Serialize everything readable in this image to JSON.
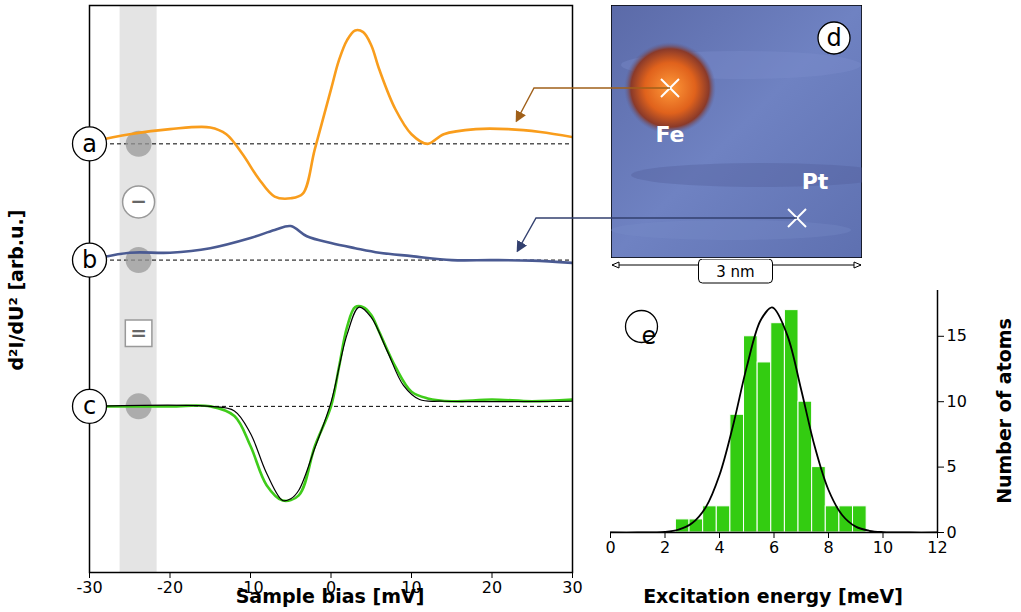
{
  "chart_data": [
    {
      "type": "line",
      "xlabel": "Sample bias [mV]",
      "ylabel": "d²I/dU² [arb.u.]",
      "xlim": [
        -30,
        30
      ],
      "xticks": [
        -30,
        -20,
        -10,
        0,
        10,
        20,
        30
      ],
      "ylim": [
        0,
        10
      ],
      "tick_labels": "x",
      "shaded_range": [
        -26.2,
        -21.6
      ],
      "marker_x": -23.9,
      "operators": [
        "−",
        "="
      ],
      "series": [
        {
          "name": "a",
          "color": "#f99d1c",
          "baseline": 7.56,
          "x": [
            -30,
            -25,
            -20,
            -15,
            -13,
            -11,
            -9,
            -7,
            -5,
            -3.5,
            -2,
            0,
            1,
            2,
            3,
            4,
            5,
            6,
            8,
            10,
            12,
            14,
            18,
            22,
            26,
            30
          ],
          "values": [
            7.59,
            7.73,
            7.82,
            7.85,
            7.73,
            7.38,
            6.95,
            6.63,
            6.6,
            6.68,
            7.47,
            8.52,
            9.04,
            9.39,
            9.56,
            9.53,
            9.3,
            8.87,
            8.17,
            7.73,
            7.56,
            7.73,
            7.82,
            7.82,
            7.77,
            7.68
          ]
        },
        {
          "name": "b",
          "color": "#4a5a92",
          "baseline": 5.51,
          "x": [
            -30,
            -25,
            -20,
            -15,
            -10,
            -7,
            -5,
            -3,
            0,
            3,
            6,
            10,
            15,
            20,
            25,
            30
          ],
          "values": [
            5.51,
            5.64,
            5.64,
            5.72,
            5.9,
            6.04,
            6.11,
            5.93,
            5.81,
            5.72,
            5.64,
            5.58,
            5.51,
            5.51,
            5.5,
            5.46
          ]
        },
        {
          "name": "c",
          "color": "#3fcc1a",
          "baseline": 2.93,
          "x": [
            -30,
            -20,
            -15,
            -12,
            -10,
            -8,
            -6,
            -4,
            -2,
            0,
            1,
            2,
            3,
            4,
            5,
            6,
            8,
            10,
            12,
            15,
            20,
            25,
            30
          ],
          "values": [
            2.93,
            2.93,
            2.93,
            2.76,
            2.23,
            1.54,
            1.27,
            1.36,
            2.23,
            2.93,
            3.63,
            4.33,
            4.68,
            4.68,
            4.54,
            4.24,
            3.63,
            3.19,
            3.07,
            3.02,
            3.05,
            3.02,
            3.05
          ]
        },
        {
          "color": "#000000",
          "x": [
            -30,
            -15,
            -12,
            -10,
            -8,
            -6,
            -5,
            -4,
            -2,
            0,
            2,
            3.5,
            5,
            7,
            9,
            11,
            14,
            30
          ],
          "values": [
            2.93,
            2.93,
            2.85,
            2.45,
            1.75,
            1.27,
            1.3,
            1.45,
            2.2,
            3.0,
            4.2,
            4.68,
            4.5,
            3.9,
            3.3,
            3.05,
            3.02,
            3.02
          ]
        }
      ]
    },
    {
      "type": "histogram",
      "panel": "e",
      "xlabel": "Excitation energy [meV]",
      "ylabel": "Number of atoms",
      "xlim": [
        0,
        12
      ],
      "xticks": [
        0,
        2,
        4,
        6,
        8,
        10,
        12
      ],
      "ylim": [
        0,
        18.5
      ],
      "yticks": [
        0,
        5,
        10,
        15
      ],
      "color": "#33cc11",
      "bins": [
        2.4,
        2.9,
        3.4,
        3.9,
        4.4,
        4.9,
        5.4,
        5.9,
        6.4,
        6.9,
        7.4,
        7.9,
        8.4,
        8.9,
        9.4
      ],
      "counts": [
        1,
        1,
        2,
        2,
        9,
        15,
        13,
        16,
        17,
        10,
        5,
        2,
        2,
        2
      ],
      "fit": {
        "color": "#000000",
        "x": [
          0,
          1,
          2,
          2.5,
          3,
          3.5,
          4,
          4.5,
          5,
          5.5,
          5.9,
          6,
          6.5,
          7,
          7.5,
          8,
          8.5,
          9,
          9.5,
          10,
          11,
          12
        ],
        "values": [
          0,
          0,
          0.05,
          0.22,
          0.72,
          1.94,
          4.39,
          8.2,
          12.66,
          16.19,
          17.2,
          17.13,
          15.01,
          10.89,
          6.53,
          3.25,
          1.34,
          0.45,
          0.13,
          0.03,
          0,
          0
        ]
      }
    }
  ],
  "image_panel": {
    "panel": "d",
    "labels": [
      "Fe",
      "Pt"
    ],
    "scale_bar": "3 nm"
  }
}
